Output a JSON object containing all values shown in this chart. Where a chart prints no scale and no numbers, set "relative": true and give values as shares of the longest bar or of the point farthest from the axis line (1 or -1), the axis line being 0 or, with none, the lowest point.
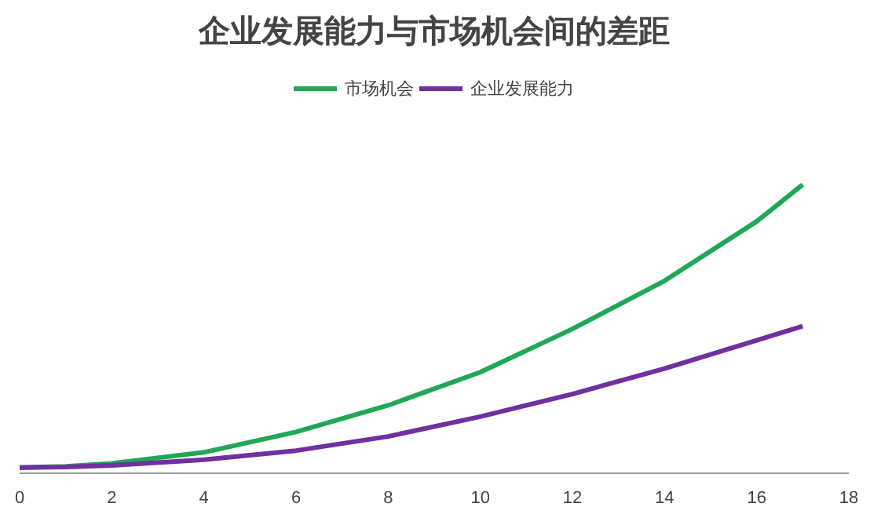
{
  "chart_data": {
    "type": "line",
    "title": "企业发展能力与市场机会间的差距",
    "relative": true,
    "x": [
      0,
      1,
      2,
      4,
      6,
      8,
      10,
      12,
      14,
      16,
      17
    ],
    "xlim": [
      0,
      18
    ],
    "xticks": [
      0,
      2,
      4,
      6,
      8,
      10,
      12,
      14,
      16,
      18
    ],
    "legend": "top",
    "grid": false,
    "marker": "none",
    "line_style": "solid",
    "series": [
      {
        "name": "市场机会",
        "color": "#1fa855",
        "values": [
          0,
          0.004,
          0.015,
          0.054,
          0.126,
          0.22,
          0.337,
          0.49,
          0.66,
          0.87,
          1
        ]
      },
      {
        "name": "企业发展能力",
        "color": "#7030a0",
        "values": [
          0,
          0.002,
          0.008,
          0.028,
          0.06,
          0.11,
          0.18,
          0.26,
          0.35,
          0.45,
          0.5
        ]
      }
    ]
  }
}
